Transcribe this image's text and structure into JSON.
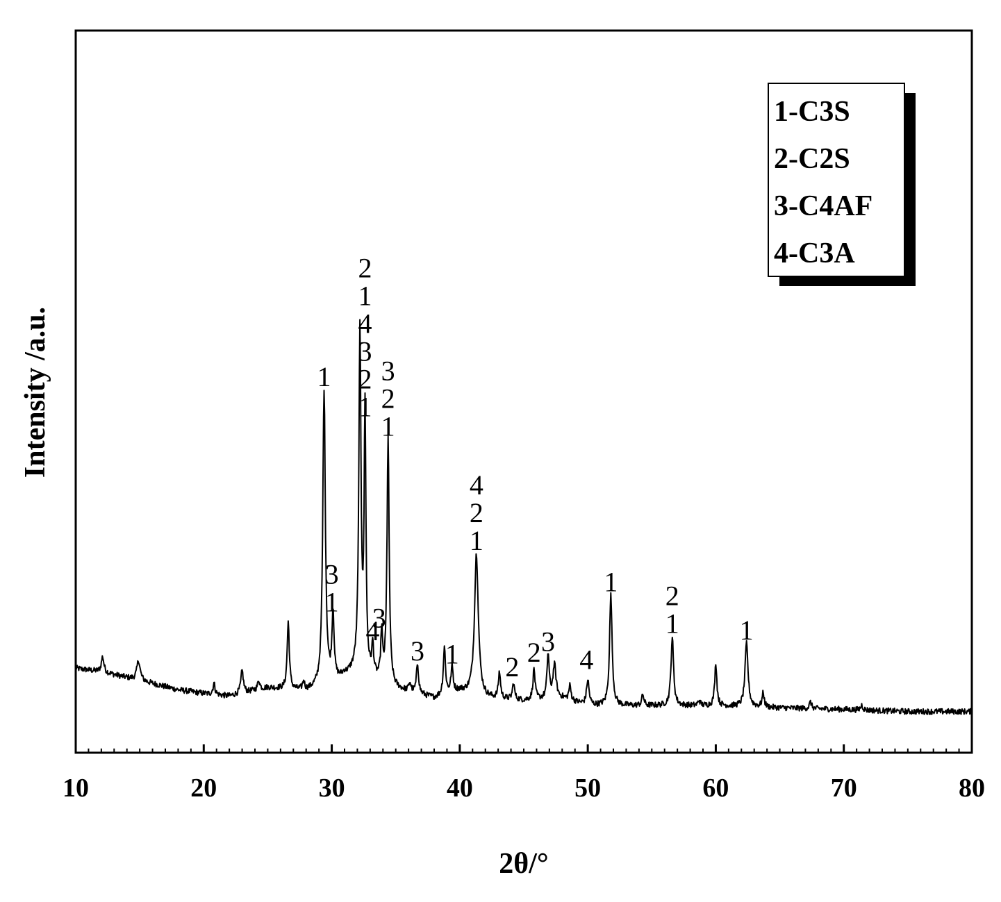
{
  "chart_data": {
    "type": "line",
    "title": "",
    "xlabel": "2θ/°",
    "ylabel": "Intensity /a.u.",
    "xlim": [
      10,
      80
    ],
    "ylim": [
      0,
      1000
    ],
    "x_ticks": [
      "10",
      "20",
      "30",
      "40",
      "50",
      "60",
      "70",
      "80"
    ],
    "y_ticks": [],
    "grid": false,
    "legend_position": "top-right",
    "legend": [
      "1-C3S",
      "2-C2S",
      "3-C4AF",
      "4-C3A"
    ],
    "series": [
      {
        "color": "#000000",
        "baseline": [
          [
            10,
            117
          ],
          [
            12,
            112
          ],
          [
            15,
            100
          ],
          [
            18,
            87
          ],
          [
            20,
            82
          ],
          [
            22,
            78
          ],
          [
            25,
            90
          ],
          [
            28,
            85
          ],
          [
            30,
            95
          ],
          [
            32,
            115
          ],
          [
            35,
            88
          ],
          [
            38,
            75
          ],
          [
            40,
            85
          ],
          [
            42,
            75
          ],
          [
            45,
            72
          ],
          [
            48,
            75
          ],
          [
            50,
            65
          ],
          [
            55,
            65
          ],
          [
            60,
            65
          ],
          [
            65,
            62
          ],
          [
            70,
            60
          ],
          [
            75,
            57
          ],
          [
            80,
            57
          ]
        ],
        "peaks": [
          [
            12.1,
            133,
            0.12
          ],
          [
            14.9,
            128,
            0.15
          ],
          [
            20.8,
            96,
            0.1
          ],
          [
            23.0,
            113,
            0.12
          ],
          [
            24.3,
            100,
            0.1
          ],
          [
            26.6,
            180,
            0.1
          ],
          [
            27.8,
            97,
            0.1
          ],
          [
            29.4,
            502,
            0.12
          ],
          [
            30.1,
            190,
            0.1
          ],
          [
            31.0,
            108,
            0.1
          ],
          [
            32.2,
            580,
            0.1
          ],
          [
            32.6,
            470,
            0.08
          ],
          [
            33.2,
            145,
            0.08
          ],
          [
            33.9,
            163,
            0.08
          ],
          [
            34.4,
            433,
            0.1
          ],
          [
            36.1,
            95,
            0.1
          ],
          [
            36.7,
            122,
            0.1
          ],
          [
            38.8,
            145,
            0.1
          ],
          [
            39.4,
            118,
            0.1
          ],
          [
            41.3,
            275,
            0.18
          ],
          [
            43.1,
            110,
            0.1
          ],
          [
            44.2,
            95,
            0.1
          ],
          [
            45.8,
            115,
            0.1
          ],
          [
            46.9,
            135,
            0.1
          ],
          [
            47.4,
            120,
            0.15
          ],
          [
            48.6,
            92,
            0.1
          ],
          [
            50.0,
            100,
            0.12
          ],
          [
            51.8,
            218,
            0.12
          ],
          [
            54.3,
            80,
            0.1
          ],
          [
            56.6,
            160,
            0.12
          ],
          [
            58.7,
            72,
            0.1
          ],
          [
            60.0,
            124,
            0.1
          ],
          [
            62.4,
            151,
            0.14
          ],
          [
            63.7,
            82,
            0.1
          ],
          [
            67.4,
            70,
            0.1
          ],
          [
            71.4,
            66,
            0.1
          ]
        ]
      }
    ],
    "annotations": [
      {
        "x": 29.4,
        "y": 502,
        "labels": [
          "1"
        ]
      },
      {
        "x": 30.0,
        "y": 190,
        "labels": [
          "3",
          "1"
        ]
      },
      {
        "x": 32.6,
        "y": 460,
        "labels": [
          "2",
          "1",
          "4",
          "3",
          "2",
          "1"
        ]
      },
      {
        "x": 33.2,
        "y": 150,
        "labels": [
          "4"
        ]
      },
      {
        "x": 33.7,
        "y": 168,
        "labels": [
          "3"
        ]
      },
      {
        "x": 34.4,
        "y": 433,
        "labels": [
          "3",
          "2",
          "1"
        ]
      },
      {
        "x": 36.7,
        "y": 122,
        "labels": [
          "3"
        ]
      },
      {
        "x": 39.4,
        "y": 118,
        "labels": [
          "1"
        ]
      },
      {
        "x": 41.3,
        "y": 275,
        "labels": [
          "4",
          "2",
          "1"
        ]
      },
      {
        "x": 44.1,
        "y": 100,
        "labels": [
          "2"
        ]
      },
      {
        "x": 45.8,
        "y": 120,
        "labels": [
          "2"
        ]
      },
      {
        "x": 46.9,
        "y": 135,
        "labels": [
          "3"
        ]
      },
      {
        "x": 49.9,
        "y": 110,
        "labels": [
          "4"
        ]
      },
      {
        "x": 51.8,
        "y": 218,
        "labels": [
          "1"
        ]
      },
      {
        "x": 56.6,
        "y": 160,
        "labels": [
          "2",
          "1"
        ]
      },
      {
        "x": 62.4,
        "y": 151,
        "labels": [
          "1"
        ]
      }
    ]
  }
}
